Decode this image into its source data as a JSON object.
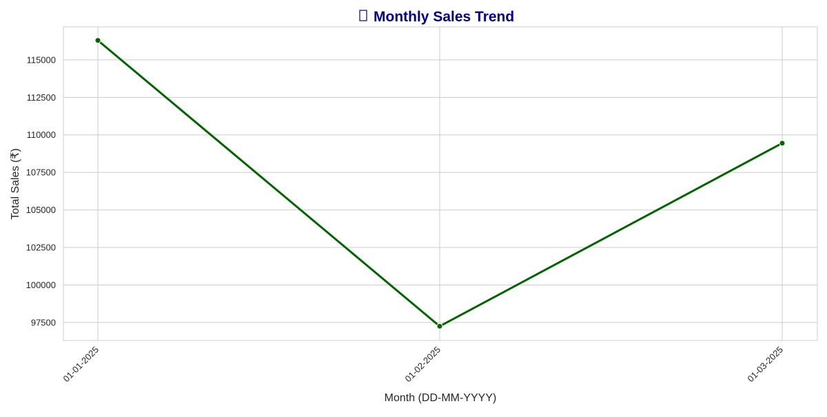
{
  "chart_data": {
    "type": "line",
    "title": "Monthly Sales Trend",
    "title_icon": "chart-icon",
    "xlabel": "Month (DD-MM-YYYY)",
    "ylabel": "Total Sales (₹)",
    "categories": [
      "01-01-2025",
      "01-02-2025",
      "01-03-2025"
    ],
    "series": [
      {
        "values": [
          116300,
          97250,
          109450
        ]
      }
    ],
    "ylim": [
      96300,
      117200
    ],
    "yticks": [
      97500,
      100000,
      102500,
      105000,
      107500,
      110000,
      112500,
      115000
    ],
    "grid": true,
    "colors": {
      "line": "#006400",
      "title": "#00008b",
      "grid": "#cccccc",
      "frame": "#cccccc"
    }
  }
}
